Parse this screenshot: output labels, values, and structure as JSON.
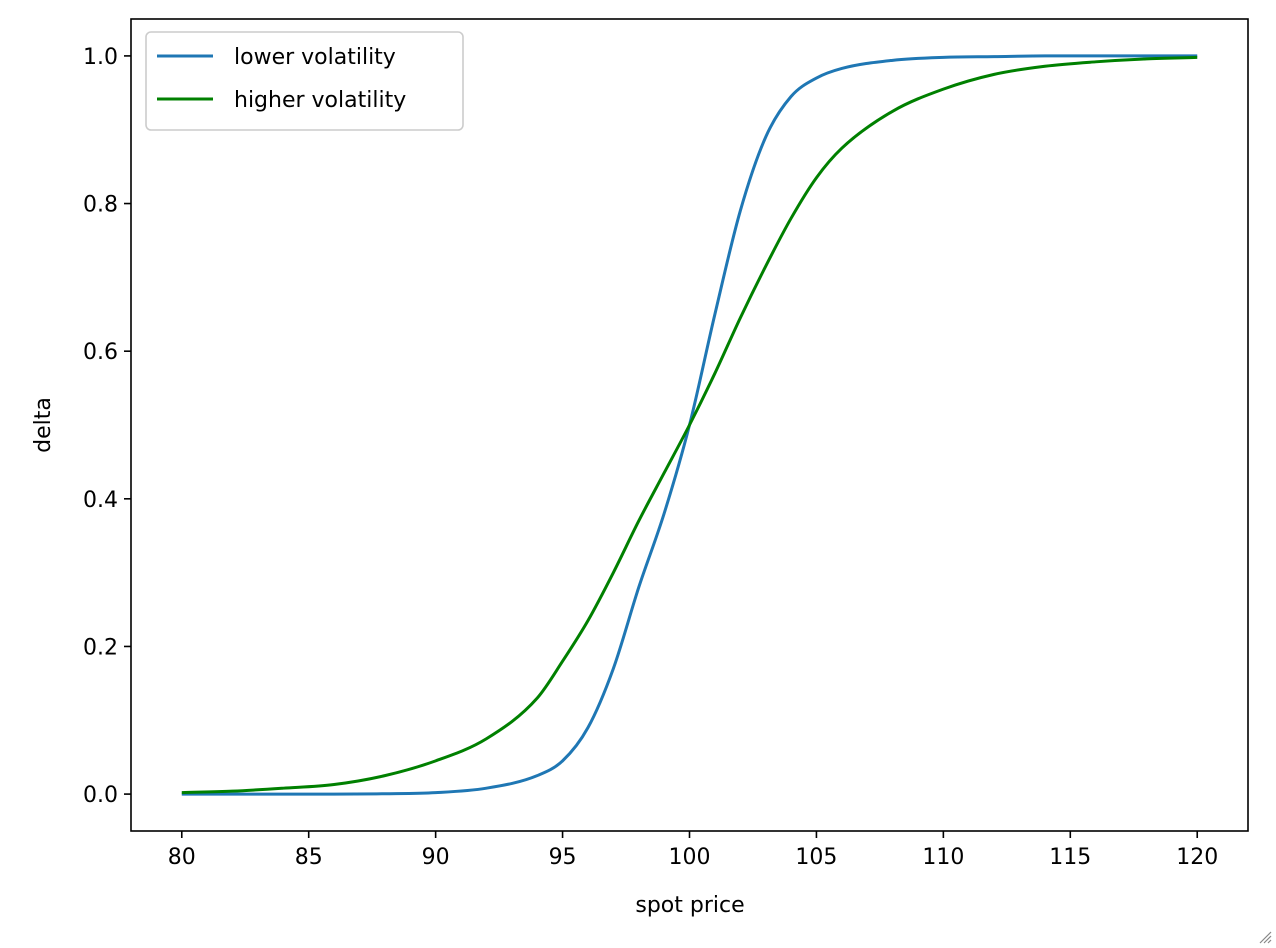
{
  "chart_data": {
    "type": "line",
    "title": "",
    "xlabel": "spot price",
    "ylabel": "delta",
    "xlim": [
      78,
      122
    ],
    "ylim": [
      -0.05,
      1.05
    ],
    "xticks": [
      80,
      85,
      90,
      95,
      100,
      105,
      110,
      115,
      120
    ],
    "yticks": [
      0.0,
      0.2,
      0.4,
      0.6,
      0.8,
      1.0
    ],
    "xtick_labels": [
      "80",
      "85",
      "90",
      "95",
      "100",
      "105",
      "110",
      "115",
      "120"
    ],
    "ytick_labels": [
      "0.0",
      "0.2",
      "0.4",
      "0.6",
      "0.8",
      "1.0"
    ],
    "grid": false,
    "legend_position": "top-left",
    "x": [
      80,
      82,
      84,
      86,
      88,
      90,
      92,
      94,
      95,
      96,
      97,
      98,
      99,
      100,
      101,
      102,
      103,
      104,
      105,
      106,
      108,
      110,
      112,
      114,
      116,
      118,
      120
    ],
    "series": [
      {
        "name": "lower volatility",
        "color": "#1f77b4",
        "values": [
          0.0,
          0.0,
          0.0,
          0.0,
          0.0005,
          0.002,
          0.008,
          0.025,
          0.045,
          0.09,
          0.17,
          0.28,
          0.38,
          0.5,
          0.65,
          0.79,
          0.89,
          0.945,
          0.97,
          0.983,
          0.994,
          0.998,
          0.999,
          1.0,
          1.0,
          1.0,
          1.0
        ]
      },
      {
        "name": "higher volatility",
        "color": "#008000",
        "values": [
          0.002,
          0.004,
          0.008,
          0.013,
          0.025,
          0.045,
          0.075,
          0.13,
          0.18,
          0.235,
          0.3,
          0.37,
          0.435,
          0.5,
          0.57,
          0.645,
          0.715,
          0.78,
          0.835,
          0.875,
          0.925,
          0.955,
          0.975,
          0.986,
          0.992,
          0.996,
          0.998
        ]
      }
    ]
  },
  "icons": {
    "resize_grip": "resize-grip-icon"
  }
}
